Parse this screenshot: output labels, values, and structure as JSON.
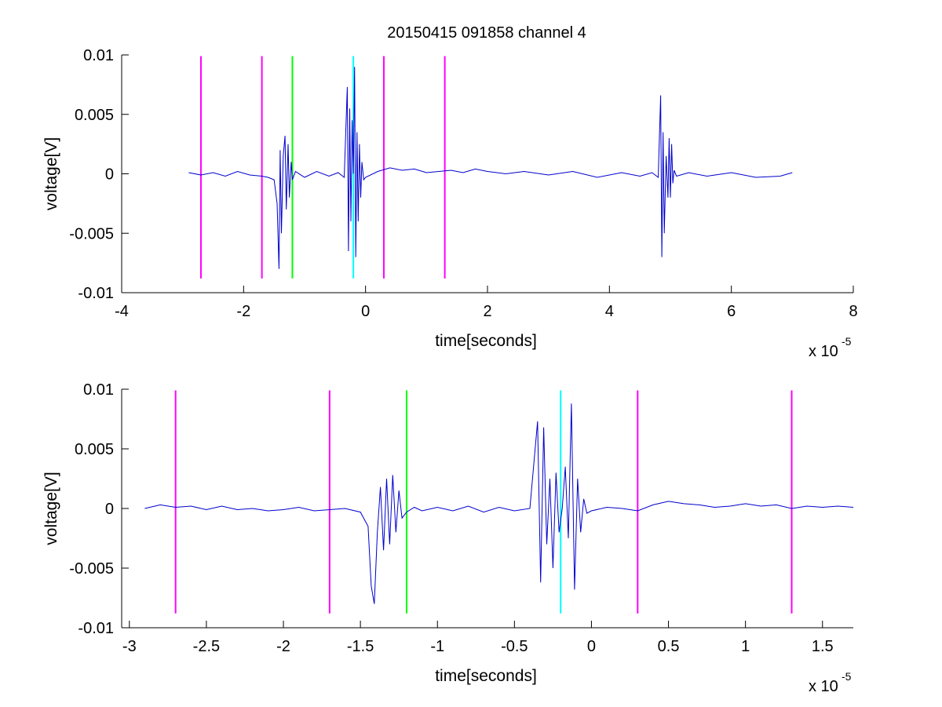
{
  "figure_title": "20150415 091858 channel 4",
  "chart_data": [
    {
      "type": "line",
      "title": "20150415 091858 channel 4",
      "xlabel": "time[seconds]",
      "ylabel": "voltage[V]",
      "x_exponent_label": "x 10",
      "x_exponent_power": "-5",
      "xlim": [
        -4,
        8
      ],
      "ylim": [
        -0.01,
        0.01
      ],
      "x_ticks": [
        -4,
        -2,
        0,
        2,
        4,
        6,
        8
      ],
      "x_tick_labels": [
        "-4",
        "-2",
        "0",
        "2",
        "4",
        "6",
        "8"
      ],
      "y_ticks": [
        -0.01,
        -0.005,
        0,
        0.005,
        0.01
      ],
      "y_tick_labels": [
        "-0.01",
        "-0.005",
        "0",
        "0.005",
        "0.01"
      ],
      "grid": false,
      "series": [
        {
          "color": "#0000cc",
          "x": [
            -2.9,
            -2.7,
            -2.5,
            -2.3,
            -2.1,
            -1.9,
            -1.7,
            -1.6,
            -1.5,
            -1.45,
            -1.42,
            -1.4,
            -1.38,
            -1.35,
            -1.32,
            -1.3,
            -1.27,
            -1.25,
            -1.22,
            -1.2,
            -1.15,
            -1.0,
            -0.8,
            -0.6,
            -0.45,
            -0.35,
            -0.3,
            -0.28,
            -0.26,
            -0.24,
            -0.22,
            -0.2,
            -0.18,
            -0.16,
            -0.14,
            -0.12,
            -0.1,
            -0.08,
            -0.06,
            -0.03,
            0.0,
            0.2,
            0.4,
            0.6,
            0.8,
            1.0,
            1.2,
            1.4,
            1.6,
            1.8,
            2.0,
            2.3,
            2.6,
            3.0,
            3.4,
            3.8,
            4.2,
            4.5,
            4.7,
            4.8,
            4.84,
            4.86,
            4.88,
            4.9,
            4.93,
            4.96,
            4.98,
            5.0,
            5.02,
            5.04,
            5.06,
            5.1,
            5.3,
            5.6,
            6.0,
            6.4,
            6.8,
            7.0
          ],
          "y": [
            0.0001,
            -0.0001,
            0.0001,
            -0.0002,
            0.0002,
            -0.0001,
            -0.0002,
            -0.0003,
            -0.0005,
            -0.0025,
            -0.008,
            0.002,
            -0.005,
            0.0015,
            0.0032,
            -0.003,
            0.0025,
            -0.002,
            0.001,
            -0.0005,
            0.0002,
            -0.0003,
            0.0002,
            -0.0002,
            0.0001,
            -0.0003,
            0.0073,
            -0.0065,
            0.0055,
            -0.004,
            0.0045,
            0.0,
            0.009,
            -0.007,
            0.0035,
            -0.004,
            0.0025,
            -0.002,
            0.001,
            -0.0005,
            -0.0003,
            0.0002,
            0.0005,
            0.0003,
            0.0004,
            0.0001,
            0.0002,
            0.0003,
            0.0001,
            0.0004,
            0.0002,
            0.0,
            0.0002,
            -0.0001,
            0.0002,
            -0.0003,
            0.0001,
            -0.0002,
            0.0001,
            -0.0003,
            0.0066,
            -0.007,
            0.0035,
            -0.005,
            0.0015,
            -0.002,
            0.003,
            -0.002,
            0.0025,
            -0.0008,
            0.0003,
            -0.0002,
            0.0001,
            -0.0002,
            0.0001,
            -0.0003,
            -0.0002,
            0.0001
          ]
        }
      ],
      "vertical_markers": [
        {
          "x": -2.7,
          "color": "#ff00ff"
        },
        {
          "x": -1.7,
          "color": "#ff00ff"
        },
        {
          "x": -1.2,
          "color": "#00ff00"
        },
        {
          "x": -0.2,
          "color": "#00ffff"
        },
        {
          "x": 0.3,
          "color": "#ff00ff"
        },
        {
          "x": 1.3,
          "color": "#ff00ff"
        }
      ],
      "marker_y_range": [
        -0.0088,
        0.0099
      ]
    },
    {
      "type": "line",
      "title": "",
      "xlabel": "time[seconds]",
      "ylabel": "voltage[V]",
      "x_exponent_label": "x 10",
      "x_exponent_power": "-5",
      "xlim": [
        -3.05,
        1.7
      ],
      "ylim": [
        -0.01,
        0.01
      ],
      "x_ticks": [
        -3,
        -2.5,
        -2,
        -1.5,
        -1,
        -0.5,
        0,
        0.5,
        1,
        1.5
      ],
      "x_tick_labels": [
        "-3",
        "-2.5",
        "-2",
        "-1.5",
        "-1",
        "-0.5",
        "0",
        "0.5",
        "1",
        "1.5"
      ],
      "y_ticks": [
        -0.01,
        -0.005,
        0,
        0.005,
        0.01
      ],
      "y_tick_labels": [
        "-0.01",
        "-0.005",
        "0",
        "0.005",
        "0.01"
      ],
      "grid": false,
      "series": [
        {
          "color": "#0000cc",
          "x": [
            -2.9,
            -2.8,
            -2.7,
            -2.6,
            -2.5,
            -2.4,
            -2.3,
            -2.2,
            -2.1,
            -2.0,
            -1.9,
            -1.8,
            -1.7,
            -1.6,
            -1.5,
            -1.45,
            -1.43,
            -1.41,
            -1.39,
            -1.37,
            -1.35,
            -1.33,
            -1.31,
            -1.29,
            -1.27,
            -1.25,
            -1.23,
            -1.2,
            -1.15,
            -1.1,
            -1.0,
            -0.9,
            -0.8,
            -0.7,
            -0.6,
            -0.5,
            -0.4,
            -0.35,
            -0.33,
            -0.31,
            -0.29,
            -0.27,
            -0.25,
            -0.23,
            -0.21,
            -0.19,
            -0.17,
            -0.15,
            -0.13,
            -0.11,
            -0.09,
            -0.07,
            -0.05,
            -0.03,
            0.0,
            0.1,
            0.2,
            0.3,
            0.4,
            0.5,
            0.6,
            0.7,
            0.8,
            0.9,
            1.0,
            1.1,
            1.2,
            1.3,
            1.4,
            1.5,
            1.6,
            1.7
          ],
          "y": [
            0.0,
            0.0003,
            0.0001,
            0.0002,
            -0.0001,
            0.0002,
            -0.0001,
            0.0,
            -0.0002,
            -0.0001,
            0.0001,
            -0.0002,
            -0.0001,
            0.0,
            -0.0003,
            -0.0015,
            -0.0065,
            -0.008,
            -0.002,
            0.0018,
            -0.0035,
            0.0025,
            -0.003,
            0.0028,
            -0.002,
            0.0015,
            -0.0008,
            -0.0003,
            0.0001,
            -0.0002,
            0.0001,
            -0.0002,
            0.0002,
            -0.0003,
            0.0001,
            -0.0002,
            0.0,
            0.0073,
            -0.0062,
            0.0068,
            -0.003,
            0.0025,
            -0.005,
            0.003,
            -0.002,
            0.0,
            0.0035,
            -0.0025,
            0.0088,
            -0.0068,
            0.0025,
            -0.002,
            0.0008,
            -0.0004,
            -0.0002,
            0.0001,
            0.0,
            -0.0002,
            0.0003,
            0.0006,
            0.0004,
            0.0003,
            0.0001,
            0.0002,
            0.0004,
            0.0002,
            0.0003,
            0.0,
            0.0002,
            0.0001,
            0.0002,
            0.0001
          ]
        }
      ],
      "vertical_markers": [
        {
          "x": -2.7,
          "color": "#ff00ff"
        },
        {
          "x": -1.7,
          "color": "#ff00ff"
        },
        {
          "x": -1.2,
          "color": "#00ff00"
        },
        {
          "x": -0.2,
          "color": "#00ffff"
        },
        {
          "x": 0.3,
          "color": "#ff00ff"
        },
        {
          "x": 1.3,
          "color": "#ff00ff"
        }
      ],
      "marker_y_range": [
        -0.0088,
        0.0099
      ]
    }
  ]
}
